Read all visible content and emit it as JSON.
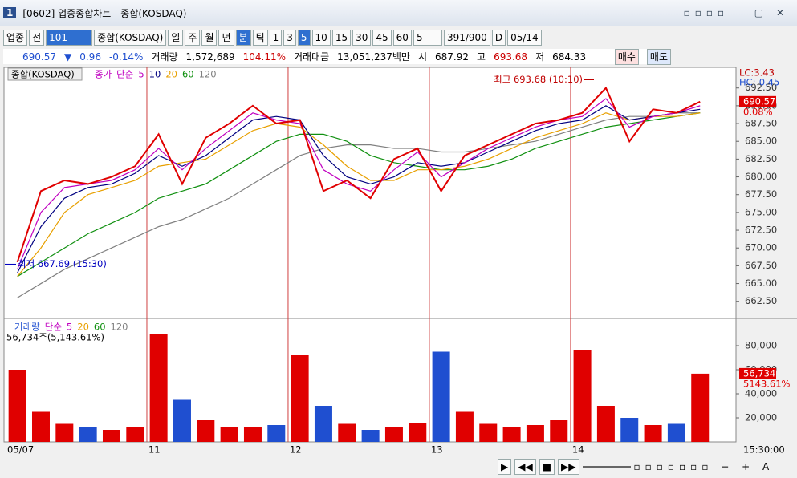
{
  "window": {
    "number": "1",
    "title": "[0602] 업종종합차트 - 종합(KOSDAQ)"
  },
  "toolbar": {
    "market": "업종",
    "mode": "전",
    "code": "101",
    "name": "종합(KOSDAQ)",
    "periods": [
      "일",
      "주",
      "월",
      "년",
      "분",
      "틱"
    ],
    "minutes": [
      "1",
      "3",
      "5",
      "10",
      "15",
      "30",
      "45",
      "60"
    ],
    "interval": "5",
    "count": "391/900",
    "date_flag": "D",
    "date": "05/14"
  },
  "quote": {
    "price": "690.57",
    "arrow": "▼",
    "change": "0.96",
    "rate": "-0.14%",
    "volume_label": "거래량",
    "volume": "1,572,689",
    "volume_rate": "104.11%",
    "amount_label": "거래대금",
    "amount": "13,051,237백만",
    "open_label": "시",
    "open": "687.92",
    "high_label": "고",
    "high": "693.68",
    "low_label": "저",
    "low": "684.33",
    "buy": "매수",
    "sell": "매도"
  },
  "time_label": "15:30:00",
  "chart_data": [
    {
      "type": "line",
      "name": "종합(KOSDAQ)",
      "legend_method": "단순",
      "categories": [
        "05/07",
        null,
        null,
        null,
        null,
        null,
        "11",
        null,
        null,
        null,
        null,
        null,
        "12",
        null,
        null,
        null,
        null,
        null,
        "13",
        null,
        null,
        null,
        null,
        null,
        "14",
        null,
        null,
        null,
        null,
        null
      ],
      "series": [
        {
          "name": "종가",
          "color": "#e00000",
          "values": [
            668,
            678,
            679.5,
            679,
            680,
            681.5,
            686,
            679,
            685.5,
            687.5,
            690,
            687.5,
            688,
            678,
            679.5,
            677,
            682.5,
            684,
            678,
            683,
            684.5,
            686,
            687.5,
            688,
            689,
            692.5,
            685,
            689.5,
            689,
            690.57
          ]
        },
        {
          "name": "5",
          "color": "#c000c0",
          "values": [
            667,
            675,
            678.5,
            679,
            679.5,
            681,
            684,
            681,
            684,
            686.5,
            689,
            688,
            687.5,
            681,
            679,
            678,
            681,
            683.5,
            680,
            682,
            684,
            685.5,
            687,
            688,
            688.5,
            691,
            687,
            688.5,
            689,
            690
          ]
        },
        {
          "name": "10",
          "color": "#000080",
          "values": [
            666.5,
            673,
            677,
            678.5,
            679,
            680.5,
            683,
            681.5,
            683,
            685.5,
            688,
            688.5,
            688,
            683,
            680,
            679,
            680,
            682,
            681.5,
            682,
            683.5,
            685,
            686.5,
            687.5,
            688,
            690,
            688,
            688.5,
            689,
            689.5
          ]
        },
        {
          "name": "20",
          "color": "#e8a000",
          "values": [
            666,
            670,
            675,
            677.5,
            678.5,
            679.5,
            681.5,
            682,
            682.5,
            684.5,
            686.5,
            687.5,
            687,
            684.5,
            681.5,
            679.5,
            679.5,
            681,
            681,
            681.5,
            682.5,
            684,
            685.5,
            686.5,
            687.5,
            689,
            688,
            688.5,
            688.5,
            689
          ]
        },
        {
          "name": "60",
          "color": "#109010",
          "values": [
            666,
            668,
            670,
            672,
            673.5,
            675,
            677,
            678,
            679,
            681,
            683,
            685,
            686,
            686,
            685,
            683,
            682,
            681.5,
            681,
            681,
            681.5,
            682.5,
            684,
            685,
            686,
            687,
            687.5,
            688,
            688.5,
            689
          ]
        },
        {
          "name": "120",
          "color": "#808080",
          "values": [
            663,
            665,
            667,
            668.5,
            670,
            671.5,
            673,
            674,
            675.5,
            677,
            679,
            681,
            683,
            684,
            684.5,
            684.5,
            684,
            684,
            683.5,
            683.5,
            684,
            684.5,
            685,
            686,
            687,
            688,
            688.5,
            688.5,
            689,
            689
          ]
        }
      ],
      "ylim": [
        660.1,
        695.4
      ],
      "yticks": [
        {
          "value": 662.5,
          "label": "662.50"
        },
        {
          "value": 665,
          "label": "665.00"
        },
        {
          "value": 667.5,
          "label": "667.50"
        },
        {
          "value": 670,
          "label": "670.00"
        },
        {
          "value": 672.5,
          "label": "672.50"
        },
        {
          "value": 675,
          "label": "675.00"
        },
        {
          "value": 677.5,
          "label": "677.50"
        },
        {
          "value": 680,
          "label": "680.00"
        },
        {
          "value": 682.5,
          "label": "682.50"
        },
        {
          "value": 685,
          "label": "685.00"
        },
        {
          "value": 687.5,
          "label": "687.50"
        },
        {
          "value": 690,
          "label": "690.00"
        },
        {
          "value": 692.5,
          "label": "692.50"
        }
      ],
      "indicators": [
        "LC:3.43",
        "HC:-0.45"
      ],
      "last_value": 690.57,
      "last_rate": "0.08%",
      "annotations": [
        {
          "label": "최고 693.68 (10:10)",
          "value": 693.68,
          "color": "#c00000"
        },
        {
          "label": "최저 667.69 (15:30)",
          "value": 667.69,
          "color": "#0000c0"
        }
      ]
    },
    {
      "type": "bar",
      "title": "거래량",
      "legend_method": "단순",
      "ma_periods": [
        "5",
        "20",
        "60",
        "120"
      ],
      "ma_colors": [
        "#c000c0",
        "#e8a000",
        "#109010",
        "#808080"
      ],
      "up_color": "#e00000",
      "down_color": "#1f4fd0",
      "values": [
        60000,
        25000,
        15000,
        12000,
        10000,
        12000,
        90000,
        35000,
        18000,
        12000,
        12000,
        14000,
        72000,
        30000,
        15000,
        10000,
        12000,
        16000,
        75000,
        25000,
        15000,
        12000,
        14000,
        18000,
        76000,
        30000,
        20000,
        14000,
        15000,
        56734
      ],
      "ylim": [
        0,
        102000
      ],
      "yticks": [
        {
          "value": 20000,
          "label": "20,000"
        },
        {
          "value": 40000,
          "label": "40,000"
        },
        {
          "value": 60000,
          "label": "60,000"
        },
        {
          "value": 80000,
          "label": "80,000"
        }
      ],
      "summary": "56,734주(5,143.61%)",
      "last_value": 56734,
      "last_value_label": "56,734",
      "last_rate": "5143.61%"
    }
  ]
}
